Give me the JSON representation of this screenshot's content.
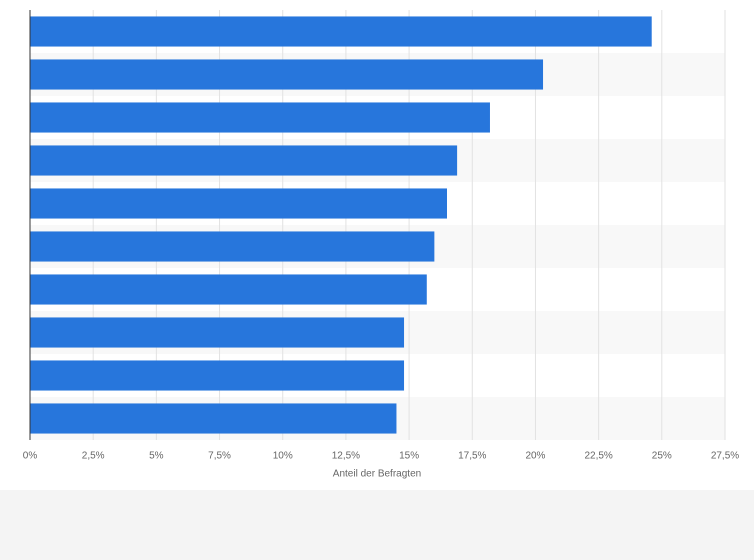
{
  "chart_data": {
    "type": "bar",
    "orientation": "horizontal",
    "x_label": "Anteil der Befragten",
    "categories": [
      null,
      null,
      null,
      null,
      null,
      null,
      null,
      null,
      null,
      null
    ],
    "values": [
      24.6,
      20.3,
      18.2,
      16.9,
      16.5,
      16.0,
      15.7,
      14.8,
      14.8,
      14.5
    ],
    "color": "#2776dc",
    "xlim": [
      0,
      27.5
    ],
    "xticks": [
      {
        "value": 0,
        "label": "0%"
      },
      {
        "value": 2.5,
        "label": "2,5%"
      },
      {
        "value": 5,
        "label": "5%"
      },
      {
        "value": 7.5,
        "label": "7,5%"
      },
      {
        "value": 10,
        "label": "10%"
      },
      {
        "value": 12.5,
        "label": "12,5%"
      },
      {
        "value": 15,
        "label": "15%"
      },
      {
        "value": 17.5,
        "label": "17,5%"
      },
      {
        "value": 20,
        "label": "20%"
      },
      {
        "value": 22.5,
        "label": "22,5%"
      },
      {
        "value": 25,
        "label": "25%"
      },
      {
        "value": 27.5,
        "label": "27,5%"
      }
    ],
    "grid": true
  }
}
